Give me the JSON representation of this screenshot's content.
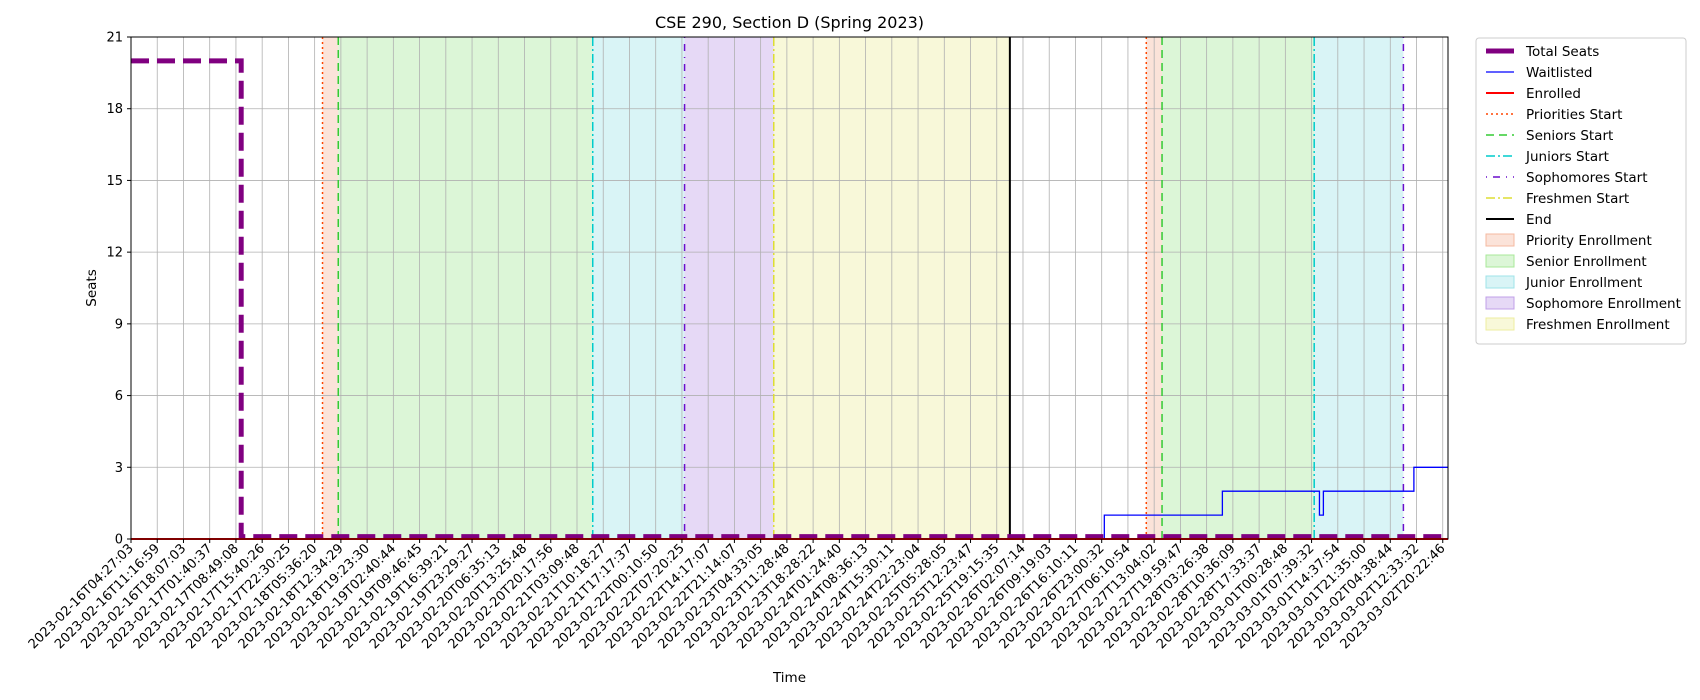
{
  "chart_data": {
    "type": "line",
    "title": "CSE 290, Section D (Spring 2023)",
    "xlabel": "Time",
    "ylabel": "Seats",
    "ylim": [
      0,
      21
    ],
    "yticks": [
      0,
      3,
      6,
      9,
      12,
      15,
      18,
      21
    ],
    "grid": true,
    "legend_position": "outside-right",
    "x_tick_labels": [
      "2023-02-16T04:27:03",
      "2023-02-16T11:16:59",
      "2023-02-16T18:07:03",
      "2023-02-17T01:40:37",
      "2023-02-17T08:49:08",
      "2023-02-17T15:40:26",
      "2023-02-17T22:30:25",
      "2023-02-18T05:36:20",
      "2023-02-18T12:34:29",
      "2023-02-18T19:23:30",
      "2023-02-19T02:40:44",
      "2023-02-19T09:46:45",
      "2023-02-19T16:39:21",
      "2023-02-19T23:29:27",
      "2023-02-20T06:35:13",
      "2023-02-20T13:25:48",
      "2023-02-20T20:17:56",
      "2023-02-21T03:09:48",
      "2023-02-21T10:18:27",
      "2023-02-21T17:17:37",
      "2023-02-22T00:10:50",
      "2023-02-22T07:20:25",
      "2023-02-22T14:17:07",
      "2023-02-22T21:14:07",
      "2023-02-23T04:33:05",
      "2023-02-23T11:28:48",
      "2023-02-23T18:28:22",
      "2023-02-24T01:24:40",
      "2023-02-24T08:36:13",
      "2023-02-24T15:30:11",
      "2023-02-24T22:23:04",
      "2023-02-25T05:28:05",
      "2023-02-25T12:23:47",
      "2023-02-25T19:15:35",
      "2023-02-26T02:07:14",
      "2023-02-26T09:19:03",
      "2023-02-26T16:10:11",
      "2023-02-26T23:00:32",
      "2023-02-27T06:10:54",
      "2023-02-27T13:04:02",
      "2023-02-27T19:59:47",
      "2023-02-28T03:26:38",
      "2023-02-28T10:36:09",
      "2023-02-28T17:33:37",
      "2023-03-01T00:28:48",
      "2023-03-01T07:39:32",
      "2023-03-01T14:37:54",
      "2023-03-01T21:35:00",
      "2023-03-02T04:38:44",
      "2023-03-02T12:33:32",
      "2023-03-02T20:22:46"
    ],
    "x_range": [
      0,
      50.2
    ],
    "series": [
      {
        "name": "Total Seats",
        "color": "#800080",
        "style": "dashed",
        "points": [
          [
            0,
            20
          ],
          [
            4.2,
            20
          ],
          [
            4.2,
            0.1
          ],
          [
            50.2,
            0.1
          ]
        ]
      },
      {
        "name": "Waitlisted",
        "color": "#0000ff",
        "style": "solid",
        "points": [
          [
            0,
            0
          ],
          [
            37.1,
            0
          ],
          [
            37.1,
            1
          ],
          [
            41.6,
            1
          ],
          [
            41.6,
            2
          ],
          [
            45.3,
            2
          ],
          [
            45.3,
            1
          ],
          [
            45.45,
            1
          ],
          [
            45.45,
            2
          ],
          [
            48.9,
            2
          ],
          [
            48.9,
            3
          ],
          [
            50.2,
            3
          ]
        ]
      },
      {
        "name": "Enrolled",
        "color": "#ff0000",
        "style": "solid",
        "points": [
          [
            0,
            0
          ],
          [
            50.2,
            0
          ]
        ]
      }
    ],
    "vertical_lines": [
      {
        "name": "Priorities Start",
        "color": "#ff4500",
        "style": "dotted",
        "x": [
          7.3,
          38.7
        ]
      },
      {
        "name": "Seniors Start",
        "color": "#33cc33",
        "style": "dashed",
        "x": [
          7.9,
          39.3
        ]
      },
      {
        "name": "Juniors Start",
        "color": "#00cccc",
        "style": "dashdot",
        "x": [
          17.6,
          45.1
        ]
      },
      {
        "name": "Sophomores Start",
        "color": "#6a0dcc",
        "style": "dashdotsparse",
        "x": [
          21.1,
          48.5
        ]
      },
      {
        "name": "Freshmen Start",
        "color": "#dddd33",
        "style": "dashdot",
        "x": [
          24.5
        ]
      },
      {
        "name": "End",
        "color": "#000000",
        "style": "solid",
        "x": [
          33.5
        ]
      }
    ],
    "spans": [
      {
        "name": "Priority Enrollment",
        "color": "#f4b9a0",
        "ranges": [
          [
            7.3,
            7.9
          ],
          [
            38.7,
            39.3
          ]
        ]
      },
      {
        "name": "Senior Enrollment",
        "color": "#a8e89a",
        "ranges": [
          [
            7.9,
            17.6
          ],
          [
            39.3,
            45.1
          ]
        ]
      },
      {
        "name": "Junior Enrollment",
        "color": "#9fe3e8",
        "ranges": [
          [
            17.6,
            21.1
          ],
          [
            45.1,
            48.5
          ]
        ]
      },
      {
        "name": "Sophomore Enrollment",
        "color": "#c0a0e8",
        "ranges": [
          [
            21.1,
            24.5
          ]
        ]
      },
      {
        "name": "Freshmen Enrollment",
        "color": "#eeeea0",
        "ranges": [
          [
            24.5,
            33.5
          ]
        ]
      }
    ],
    "legend": [
      "Total Seats",
      "Waitlisted",
      "Enrolled",
      "Priorities Start",
      "Seniors Start",
      "Juniors Start",
      "Sophomores Start",
      "Freshmen Start",
      "End",
      "Priority Enrollment",
      "Senior Enrollment",
      "Junior Enrollment",
      "Sophomore Enrollment",
      "Freshmen Enrollment"
    ]
  }
}
